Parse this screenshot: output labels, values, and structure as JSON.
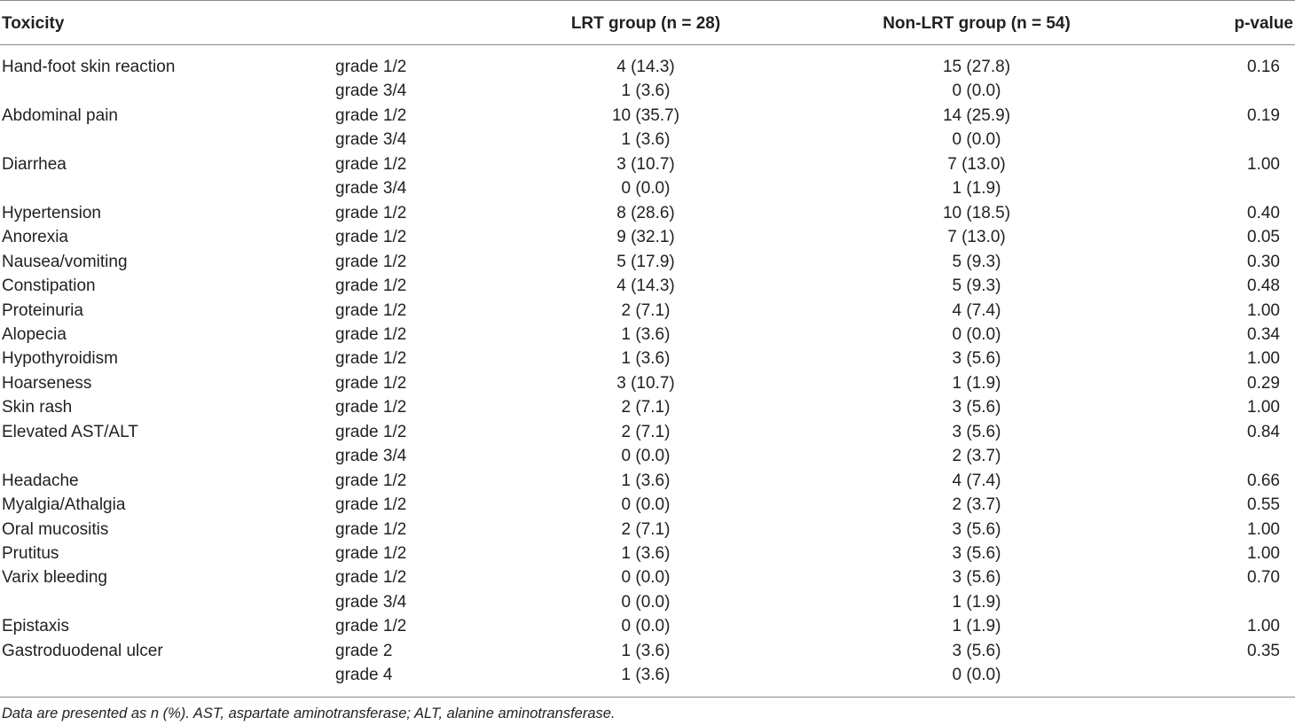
{
  "table": {
    "header": {
      "toxicity": "Toxicity",
      "lrt": "LRT group (n = 28)",
      "non_lrt": "Non-LRT group (n = 54)",
      "p": "p-value"
    },
    "rows": [
      {
        "toxicity": "Hand-foot skin reaction",
        "grade": "grade 1/2",
        "lrt": "4 (14.3)",
        "non_lrt": "15 (27.8)",
        "p": "0.16"
      },
      {
        "grade": "grade 3/4",
        "lrt": "1 (3.6)",
        "non_lrt": "0 (0.0)"
      },
      {
        "toxicity": "Abdominal pain",
        "grade": "grade 1/2",
        "lrt": "10 (35.7)",
        "non_lrt": "14 (25.9)",
        "p": "0.19"
      },
      {
        "grade": "grade 3/4",
        "lrt": "1 (3.6)",
        "non_lrt": "0 (0.0)"
      },
      {
        "toxicity": "Diarrhea",
        "grade": "grade 1/2",
        "lrt": "3 (10.7)",
        "non_lrt": "7 (13.0)",
        "p": "1.00"
      },
      {
        "grade": "grade 3/4",
        "lrt": "0 (0.0)",
        "non_lrt": "1 (1.9)"
      },
      {
        "toxicity": "Hypertension",
        "grade": "grade 1/2",
        "lrt": "8 (28.6)",
        "non_lrt": "10 (18.5)",
        "p": "0.40"
      },
      {
        "toxicity": "Anorexia",
        "grade": "grade 1/2",
        "lrt": "9 (32.1)",
        "non_lrt": "7 (13.0)",
        "p": "0.05"
      },
      {
        "toxicity": "Nausea/vomiting",
        "grade": "grade 1/2",
        "lrt": "5 (17.9)",
        "non_lrt": "5 (9.3)",
        "p": "0.30"
      },
      {
        "toxicity": "Constipation",
        "grade": "grade 1/2",
        "lrt": "4 (14.3)",
        "non_lrt": "5 (9.3)",
        "p": "0.48"
      },
      {
        "toxicity": "Proteinuria",
        "grade": "grade 1/2",
        "lrt": "2 (7.1)",
        "non_lrt": "4 (7.4)",
        "p": "1.00"
      },
      {
        "toxicity": "Alopecia",
        "grade": "grade 1/2",
        "lrt": "1 (3.6)",
        "non_lrt": "0 (0.0)",
        "p": "0.34"
      },
      {
        "toxicity": "Hypothyroidism",
        "grade": "grade 1/2",
        "lrt": "1 (3.6)",
        "non_lrt": "3 (5.6)",
        "p": "1.00"
      },
      {
        "toxicity": "Hoarseness",
        "grade": "grade 1/2",
        "lrt": "3 (10.7)",
        "non_lrt": "1 (1.9)",
        "p": "0.29"
      },
      {
        "toxicity": "Skin rash",
        "grade": "grade 1/2",
        "lrt": "2 (7.1)",
        "non_lrt": "3 (5.6)",
        "p": "1.00"
      },
      {
        "toxicity": "Elevated AST/ALT",
        "grade": "grade 1/2",
        "lrt": "2 (7.1)",
        "non_lrt": "3 (5.6)",
        "p": "0.84"
      },
      {
        "grade": "grade 3/4",
        "lrt": "0 (0.0)",
        "non_lrt": "2 (3.7)"
      },
      {
        "toxicity": "Headache",
        "grade": "grade 1/2",
        "lrt": "1 (3.6)",
        "non_lrt": "4 (7.4)",
        "p": "0.66"
      },
      {
        "toxicity": "Myalgia/Athalgia",
        "grade": "grade 1/2",
        "lrt": "0 (0.0)",
        "non_lrt": "2 (3.7)",
        "p": "0.55"
      },
      {
        "toxicity": "Oral mucositis",
        "grade": "grade 1/2",
        "lrt": "2 (7.1)",
        "non_lrt": "3 (5.6)",
        "p": "1.00"
      },
      {
        "toxicity": "Prutitus",
        "grade": "grade 1/2",
        "lrt": "1 (3.6)",
        "non_lrt": "3 (5.6)",
        "p": "1.00"
      },
      {
        "toxicity": "Varix bleeding",
        "grade": "grade 1/2",
        "lrt": "0 (0.0)",
        "non_lrt": "3 (5.6)",
        "p": "0.70"
      },
      {
        "grade": "grade 3/4",
        "lrt": "0 (0.0)",
        "non_lrt": "1 (1.9)"
      },
      {
        "toxicity": "Epistaxis",
        "grade": "grade 1/2",
        "lrt": "0 (0.0)",
        "non_lrt": "1 (1.9)",
        "p": "1.00"
      },
      {
        "toxicity": "Gastroduodenal ulcer",
        "grade": "grade 2",
        "lrt": "1 (3.6)",
        "non_lrt": "3 (5.6)",
        "p": "0.35"
      },
      {
        "grade": "grade 4",
        "lrt": "1 (3.6)",
        "non_lrt": "0 (0.0)"
      }
    ],
    "footnote": "Data are presented as n (%). AST, aspartate aminotransferase; ALT, alanine aminotransferase."
  }
}
